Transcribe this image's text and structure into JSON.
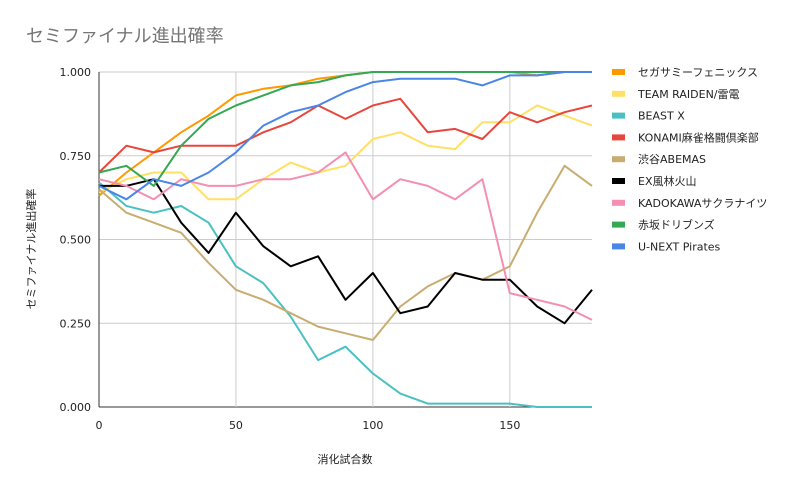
{
  "chart_data": {
    "type": "line",
    "title": "セミファイナル進出確率",
    "xlabel": "消化試合数",
    "ylabel": "セミファイナル進出確率",
    "xlim": [
      0,
      180
    ],
    "ylim": [
      0,
      1
    ],
    "x_ticks": [
      0,
      50,
      100,
      150
    ],
    "y_ticks": [
      0,
      0.25,
      0.5,
      0.75,
      1.0
    ],
    "x_tick_labels": [
      "0",
      "50",
      "100",
      "150"
    ],
    "y_tick_labels": [
      "0.000",
      "0.250",
      "0.500",
      "0.750",
      "1.000"
    ],
    "grid": true,
    "legend_position": "right",
    "x": [
      0,
      10,
      20,
      30,
      40,
      50,
      60,
      70,
      80,
      90,
      100,
      110,
      120,
      130,
      140,
      150,
      160,
      170,
      180
    ],
    "series": [
      {
        "name": "セガサミーフェニックス",
        "color": "#ff9900",
        "values": [
          0.63,
          0.7,
          0.76,
          0.82,
          0.87,
          0.93,
          0.95,
          0.96,
          0.98,
          0.99,
          1.0,
          1.0,
          1.0,
          1.0,
          1.0,
          1.0,
          0.99,
          1.0,
          1.0
        ]
      },
      {
        "name": "TEAM RAIDEN/雷電",
        "color": "#ffe066",
        "values": [
          0.64,
          0.68,
          0.7,
          0.7,
          0.62,
          0.62,
          0.68,
          0.73,
          0.7,
          0.72,
          0.8,
          0.82,
          0.78,
          0.77,
          0.85,
          0.85,
          0.9,
          0.87,
          0.84
        ]
      },
      {
        "name": "BEAST X",
        "color": "#4bc0c0",
        "values": [
          0.67,
          0.6,
          0.58,
          0.6,
          0.55,
          0.42,
          0.37,
          0.27,
          0.14,
          0.18,
          0.1,
          0.04,
          0.01,
          0.01,
          0.01,
          0.01,
          0.0,
          0.0,
          0.0
        ]
      },
      {
        "name": "KONAMI麻雀格闘倶楽部",
        "color": "#e8453c",
        "values": [
          0.7,
          0.78,
          0.76,
          0.78,
          0.78,
          0.78,
          0.82,
          0.85,
          0.9,
          0.86,
          0.9,
          0.92,
          0.82,
          0.83,
          0.8,
          0.88,
          0.85,
          0.88,
          0.9
        ]
      },
      {
        "name": "渋谷ABEMAS",
        "color": "#c9ac6f",
        "values": [
          0.65,
          0.58,
          0.55,
          0.52,
          0.43,
          0.35,
          0.32,
          0.28,
          0.24,
          0.22,
          0.2,
          0.3,
          0.36,
          0.4,
          0.38,
          0.42,
          0.58,
          0.72,
          0.66
        ]
      },
      {
        "name": "EX風林火山",
        "color": "#000000",
        "values": [
          0.66,
          0.66,
          0.68,
          0.55,
          0.46,
          0.58,
          0.48,
          0.42,
          0.45,
          0.32,
          0.4,
          0.28,
          0.3,
          0.4,
          0.38,
          0.38,
          0.3,
          0.25,
          0.35
        ]
      },
      {
        "name": "KADOKAWAサクラナイツ",
        "color": "#f48fb1",
        "values": [
          0.68,
          0.66,
          0.62,
          0.68,
          0.66,
          0.66,
          0.68,
          0.68,
          0.7,
          0.76,
          0.62,
          0.68,
          0.66,
          0.62,
          0.68,
          0.34,
          0.32,
          0.3,
          0.26
        ]
      },
      {
        "name": "赤坂ドリブンズ",
        "color": "#34a853",
        "values": [
          0.7,
          0.72,
          0.66,
          0.78,
          0.86,
          0.9,
          0.93,
          0.96,
          0.97,
          0.99,
          1.0,
          1.0,
          1.0,
          1.0,
          1.0,
          1.0,
          1.0,
          1.0,
          1.0
        ]
      },
      {
        "name": "U-NEXT Pirates",
        "color": "#4a86e8",
        "values": [
          0.66,
          0.62,
          0.68,
          0.66,
          0.7,
          0.76,
          0.84,
          0.88,
          0.9,
          0.94,
          0.97,
          0.98,
          0.98,
          0.98,
          0.96,
          0.99,
          0.99,
          1.0,
          1.0
        ]
      }
    ]
  }
}
